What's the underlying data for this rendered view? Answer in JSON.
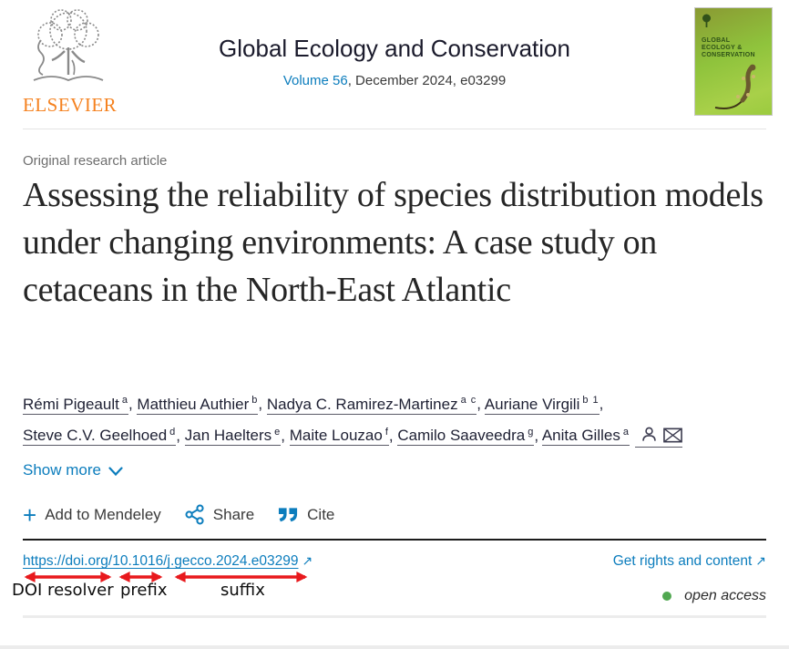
{
  "header": {
    "publisher_wordmark": "ELSEVIER",
    "journal_title": "Global Ecology and Conservation",
    "volume_link": "Volume 56",
    "issue_info": ", December 2024, e03299",
    "cover": {
      "line1": "GLOBAL",
      "line2": "ECOLOGY &",
      "line3": "CONSERVATION"
    }
  },
  "article": {
    "type_label": "Original research article",
    "title": "Assessing the reliability of species distribution models under changing environments: A case study on cetaceans in the North-East Atlantic",
    "authors": [
      {
        "name": "Rémi Pigeault",
        "sup": "a"
      },
      {
        "name": "Matthieu Authier",
        "sup": "b"
      },
      {
        "name": "Nadya C. Ramirez-Martinez",
        "sup": "a c"
      },
      {
        "name": "Auriane Virgili",
        "sup": "b 1"
      },
      {
        "name": "Steve C.V. Geelhoed",
        "sup": "d"
      },
      {
        "name": "Jan Haelters",
        "sup": "e"
      },
      {
        "name": "Maite Louzao",
        "sup": "f"
      },
      {
        "name": "Camilo Saaveedra",
        "sup": "g"
      },
      {
        "name": "Anita Gilles",
        "sup": "a"
      }
    ],
    "show_more_label": "Show more"
  },
  "actions": {
    "mendeley_label": "Add to Mendeley",
    "share_label": "Share",
    "cite_label": "Cite"
  },
  "doi": {
    "url": "https://doi.org/10.1016/j.gecco.2024.e03299",
    "external_arrow": "↗",
    "rights_label": "Get rights and content",
    "open_access_label": "open access"
  },
  "annotations": {
    "resolver_label": "DOI resolver",
    "prefix_label": "prefix",
    "suffix_label": "suffix"
  },
  "colors": {
    "link_blue": "#0c7dbd",
    "elsevier_orange": "#f58220",
    "annotation_red": "#e8191d",
    "open_access_green": "#51a851",
    "journal_navy": "#1b1b2c"
  }
}
